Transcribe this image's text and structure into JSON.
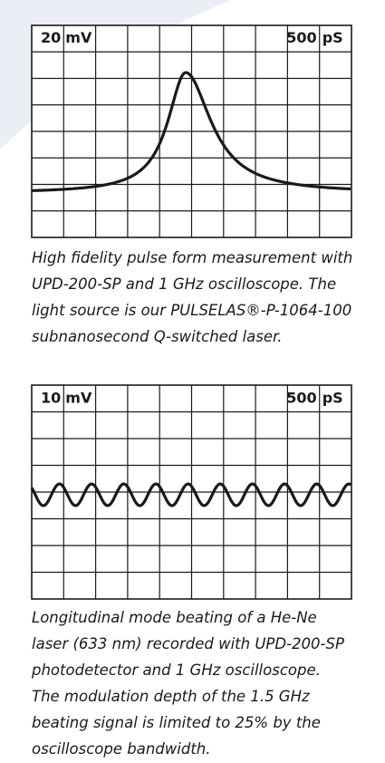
{
  "figures": [
    {
      "scale_left": {
        "value": "20",
        "unit": "mV"
      },
      "scale_right": {
        "value": "500",
        "unit": "pS"
      },
      "caption": [
        "High fidelity pulse form measurement with",
        "UPD-200-SP and 1 GHz oscilloscope. The",
        "light source is our PULSELAS®-P-1064-100",
        "subnanosecond Q-switched laser."
      ]
    },
    {
      "scale_left": {
        "value": "10",
        "unit": "mV"
      },
      "scale_right": {
        "value": "500",
        "unit": "pS"
      },
      "caption": [
        "Longitudinal mode beating of a He-Ne",
        "laser (633 nm) recorded with UPD-200-SP",
        "photodetector and 1 GHz oscilloscope.",
        "The modulation depth of the 1.5 GHz",
        "beating signal is limited to 25% by the",
        "oscilloscope bandwidth."
      ]
    }
  ]
}
